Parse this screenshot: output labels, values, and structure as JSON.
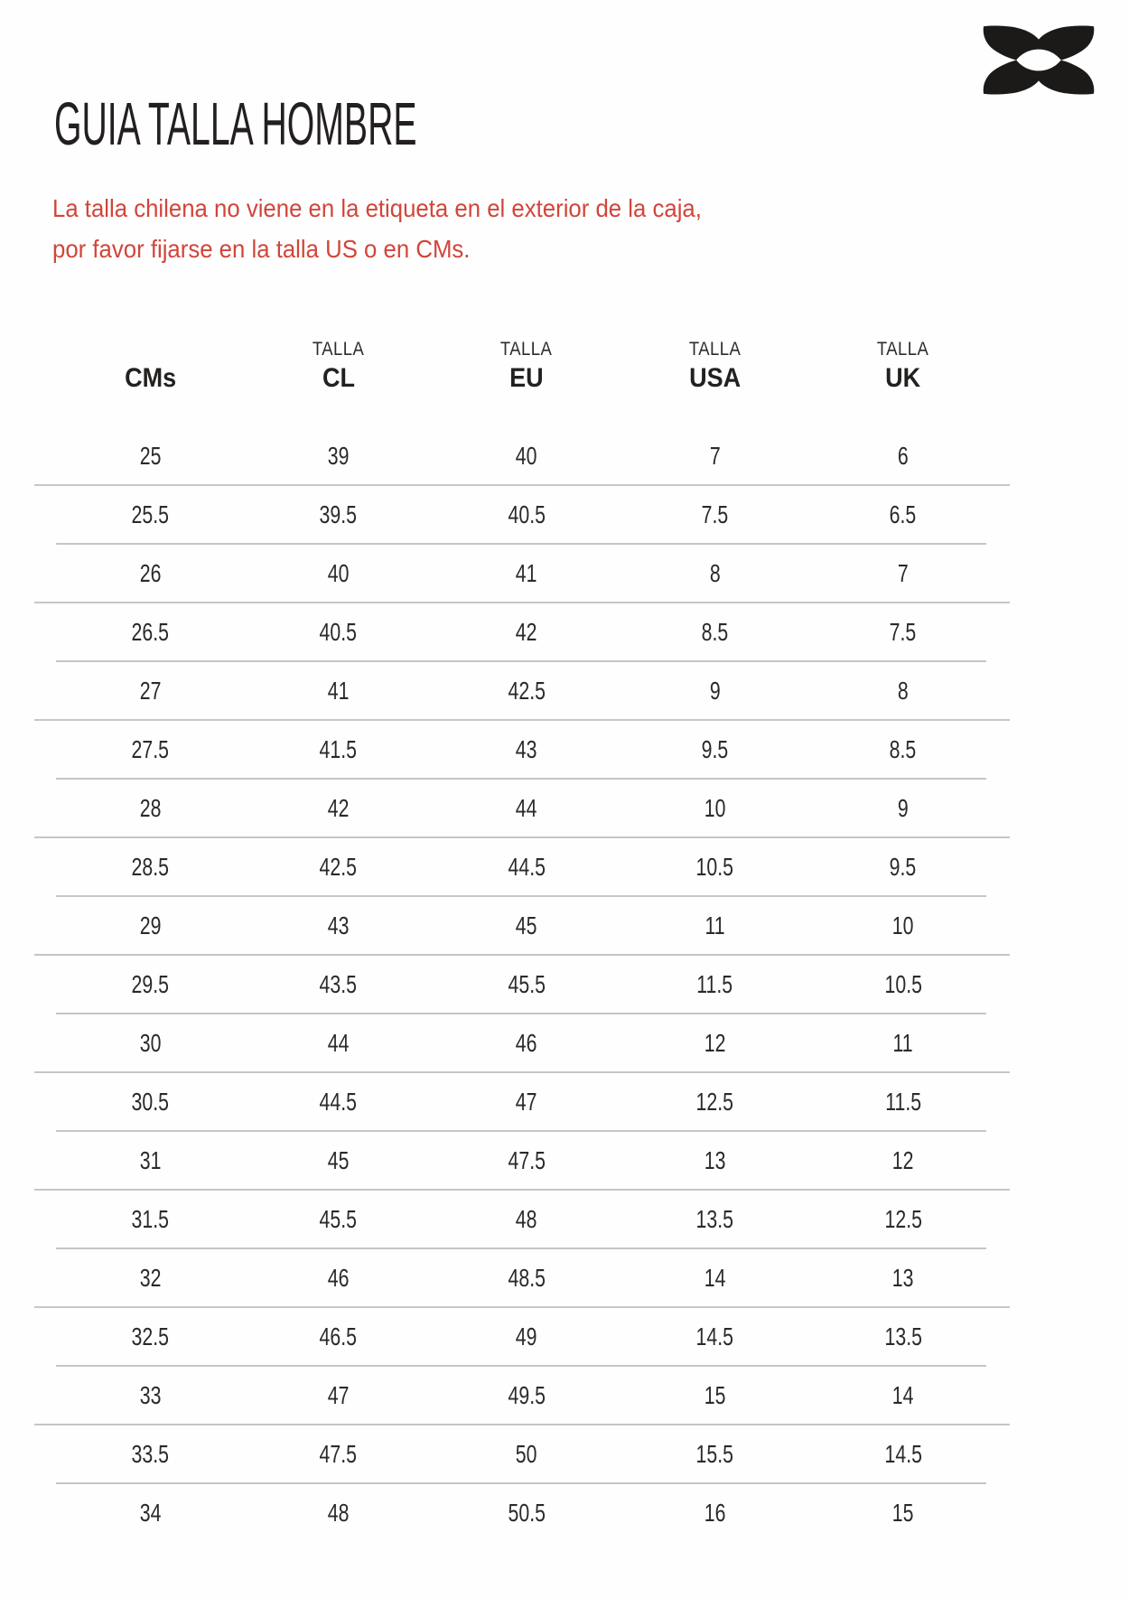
{
  "brand": {
    "name": "Under Armour",
    "logo_color": "#1b1a19"
  },
  "header": {
    "title": "GUIA TALLA HOMBRE"
  },
  "note": {
    "color": "#d2453a",
    "line1": "La talla chilena no viene en la etiqueta en el exterior de la caja,",
    "line2": "por favor fijarse en la talla US o en CMs."
  },
  "table": {
    "separator_color": "#c7c6c5",
    "columns": [
      {
        "super": "",
        "label": "CMs"
      },
      {
        "super": "TALLA",
        "label": "CL"
      },
      {
        "super": "TALLA",
        "label": "EU"
      },
      {
        "super": "TALLA",
        "label": "USA"
      },
      {
        "super": "TALLA",
        "label": "UK"
      }
    ],
    "rows": [
      [
        "25",
        "39",
        "40",
        "7",
        "6"
      ],
      [
        "25.5",
        "39.5",
        "40.5",
        "7.5",
        "6.5"
      ],
      [
        "26",
        "40",
        "41",
        "8",
        "7"
      ],
      [
        "26.5",
        "40.5",
        "42",
        "8.5",
        "7.5"
      ],
      [
        "27",
        "41",
        "42.5",
        "9",
        "8"
      ],
      [
        "27.5",
        "41.5",
        "43",
        "9.5",
        "8.5"
      ],
      [
        "28",
        "42",
        "44",
        "10",
        "9"
      ],
      [
        "28.5",
        "42.5",
        "44.5",
        "10.5",
        "9.5"
      ],
      [
        "29",
        "43",
        "45",
        "11",
        "10"
      ],
      [
        "29.5",
        "43.5",
        "45.5",
        "11.5",
        "10.5"
      ],
      [
        "30",
        "44",
        "46",
        "12",
        "11"
      ],
      [
        "30.5",
        "44.5",
        "47",
        "12.5",
        "11.5"
      ],
      [
        "31",
        "45",
        "47.5",
        "13",
        "12"
      ],
      [
        "31.5",
        "45.5",
        "48",
        "13.5",
        "12.5"
      ],
      [
        "32",
        "46",
        "48.5",
        "14",
        "13"
      ],
      [
        "32.5",
        "46.5",
        "49",
        "14.5",
        "13.5"
      ],
      [
        "33",
        "47",
        "49.5",
        "15",
        "14"
      ],
      [
        "33.5",
        "47.5",
        "50",
        "15.5",
        "14.5"
      ],
      [
        "34",
        "48",
        "50.5",
        "16",
        "15"
      ]
    ]
  }
}
